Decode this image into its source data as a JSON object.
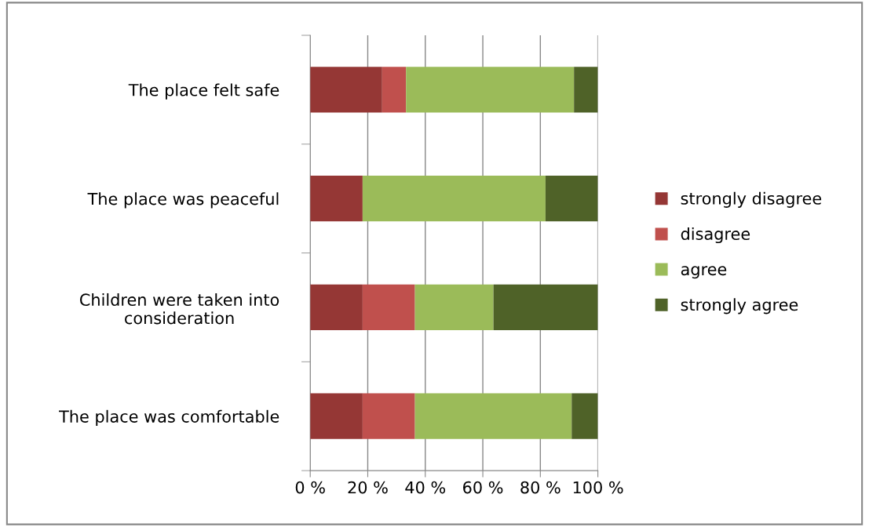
{
  "chart_data": {
    "type": "bar",
    "orientation": "horizontal",
    "stacked": true,
    "categories": [
      "The place felt safe",
      "The place was peaceful",
      "Children were taken into\nconsideration",
      "The place was comfortable"
    ],
    "series": [
      {
        "name": "strongly disagree",
        "color": "#953735",
        "values": [
          25,
          18.2,
          18.2,
          18.2
        ]
      },
      {
        "name": "disagree",
        "color": "#c0504d",
        "values": [
          8.3,
          0,
          18.2,
          18.2
        ]
      },
      {
        "name": "agree",
        "color": "#9bbb59",
        "values": [
          58.4,
          63.6,
          27.3,
          54.5
        ]
      },
      {
        "name": "strongly agree",
        "color": "#4f6228",
        "values": [
          8.3,
          18.2,
          36.3,
          9.1
        ]
      }
    ],
    "xlim": [
      0,
      100
    ],
    "xticks": [
      {
        "value": 0,
        "label": "0 %"
      },
      {
        "value": 20,
        "label": "20 %"
      },
      {
        "value": 40,
        "label": "40 %"
      },
      {
        "value": 60,
        "label": "60 %"
      },
      {
        "value": 80,
        "label": "80 %"
      },
      {
        "value": 100,
        "label": "100 %"
      }
    ],
    "grid": "x",
    "legend": "right"
  }
}
